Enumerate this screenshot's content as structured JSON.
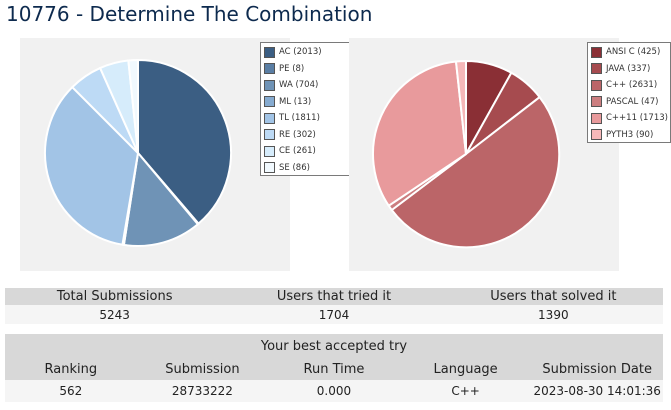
{
  "page": {
    "title": "10776 - Determine The Combination"
  },
  "verdict_chart": {
    "type": "pie",
    "legend": [
      {
        "label": "AC (2013)",
        "value": 2013,
        "color": "#3b5e83"
      },
      {
        "label": "PE (8)",
        "value": 8,
        "color": "#5a7ea4"
      },
      {
        "label": "WA (704)",
        "value": 704,
        "color": "#6f93b6"
      },
      {
        "label": "ML (13)",
        "value": 13,
        "color": "#86abd0"
      },
      {
        "label": "TL (1811)",
        "value": 1811,
        "color": "#a2c4e6"
      },
      {
        "label": "RE (302)",
        "value": 302,
        "color": "#bddaf5"
      },
      {
        "label": "CE (261)",
        "value": 261,
        "color": "#d6ecfb"
      },
      {
        "label": "SE (86)",
        "value": 86,
        "color": "#f1f9fe"
      }
    ]
  },
  "language_chart": {
    "type": "pie",
    "legend": [
      {
        "label": "ANSI C (425)",
        "value": 425,
        "color": "#8a2f35"
      },
      {
        "label": "JAVA (337)",
        "value": 337,
        "color": "#a64b4f"
      },
      {
        "label": "C++ (2631)",
        "value": 2631,
        "color": "#bb6568"
      },
      {
        "label": "PASCAL (47)",
        "value": 47,
        "color": "#cc7e80"
      },
      {
        "label": "C++11 (1713)",
        "value": 1713,
        "color": "#e89a9c"
      },
      {
        "label": "PYTH3 (90)",
        "value": 90,
        "color": "#f6b8b9"
      }
    ]
  },
  "stats": {
    "headers": [
      "Total Submissions",
      "Users that tried it",
      "Users that solved it"
    ],
    "values": [
      "5243",
      "1704",
      "1390"
    ]
  },
  "best": {
    "caption": "Your best accepted try",
    "headers": [
      "Ranking",
      "Submission",
      "Run Time",
      "Language",
      "Submission Date"
    ],
    "values": [
      "562",
      "28733222",
      "0.000",
      "C++",
      "2023-08-30 14:01:36"
    ]
  }
}
